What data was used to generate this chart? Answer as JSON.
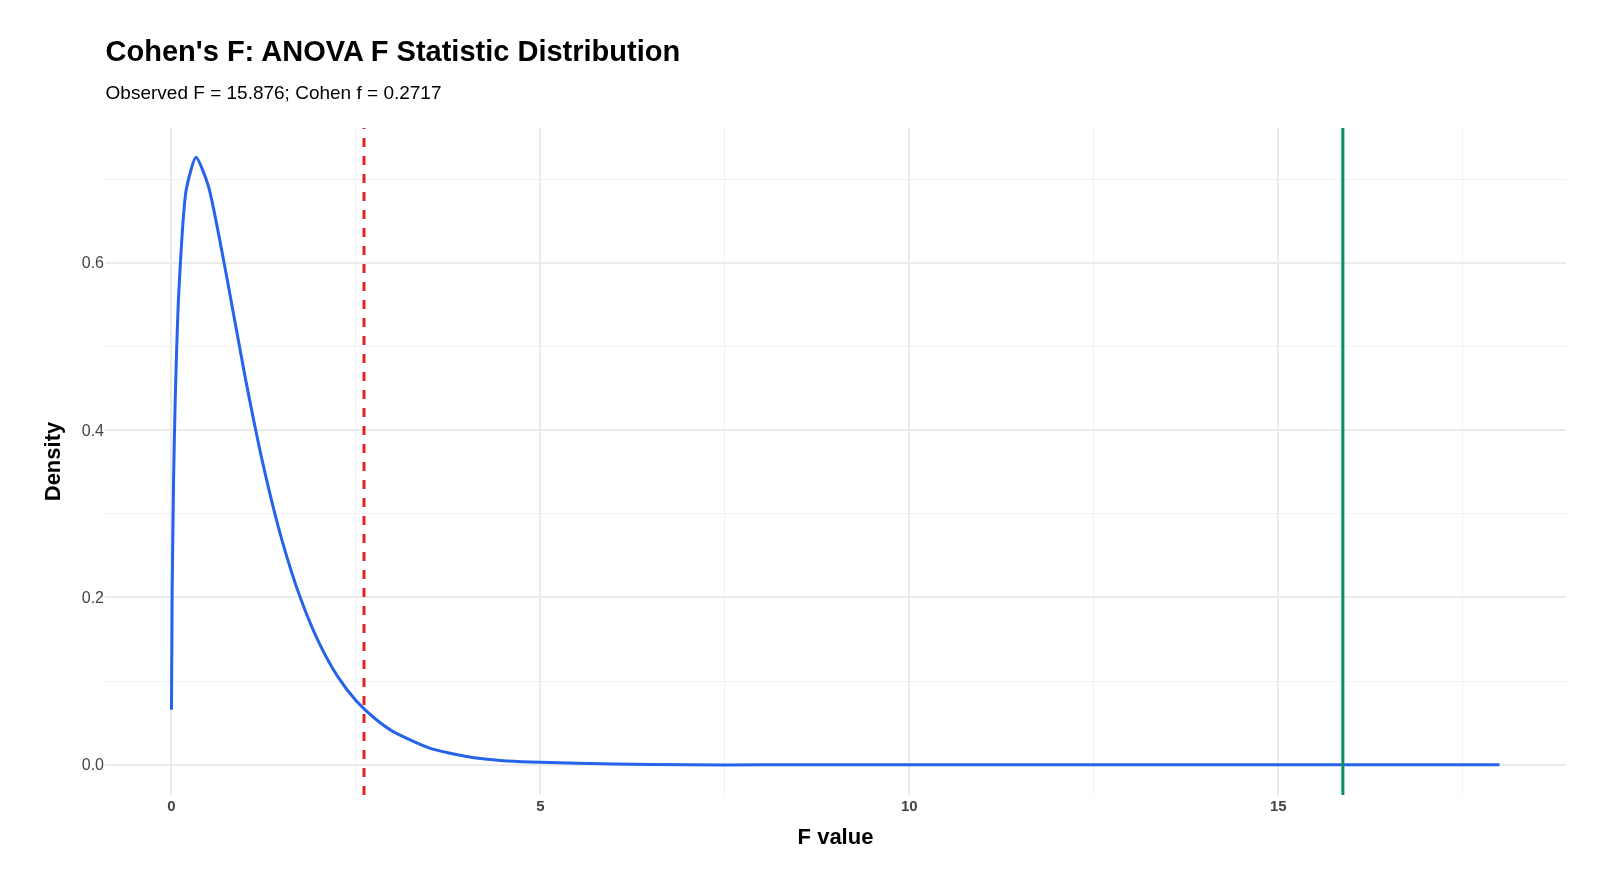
{
  "chart_data": {
    "type": "line",
    "title": "Cohen's F: ANOVA F Statistic Distribution",
    "subtitle": "Observed F = 15.876; Cohen f = 0.2717",
    "xlabel": "F value",
    "ylabel": "Density",
    "x": [
      0.001,
      0.01,
      0.03,
      0.05,
      0.1,
      0.2,
      0.333,
      0.5,
      0.75,
      1,
      1.25,
      1.5,
      1.75,
      2,
      2.25,
      2.5,
      2.75,
      3,
      3.5,
      4,
      4.5,
      5,
      6,
      7,
      8,
      10,
      12,
      14,
      16,
      18
    ],
    "series": [
      {
        "color": "#2563eb",
        "values": [
          0.066,
          0.204,
          0.343,
          0.43,
          0.564,
          0.687,
          0.726,
          0.692,
          0.583,
          0.463,
          0.356,
          0.268,
          0.199,
          0.146,
          0.106,
          0.077,
          0.056,
          0.04,
          0.02,
          0.01,
          0.005,
          0.003,
          0.001,
          0,
          0,
          0,
          0,
          0,
          0,
          0
        ]
      }
    ],
    "xlim": [
      -0.9,
      18.9
    ],
    "ylim": [
      -0.036,
      0.761
    ],
    "xticks": [
      0,
      5,
      10,
      15
    ],
    "yticks": [
      {
        "value": 0,
        "label": "0.0"
      },
      {
        "value": 0.2,
        "label": "0.2"
      },
      {
        "value": 0.4,
        "label": "0.4"
      },
      {
        "value": 0.6,
        "label": "0.6"
      }
    ],
    "ref_lines": [
      {
        "axis": "x",
        "value": 2.61,
        "color": "#e02424",
        "line_style": "dashed"
      },
      {
        "axis": "x",
        "value": 15.876,
        "color": "#0b8f5e",
        "line_style": "solid"
      }
    ],
    "grid": true,
    "marker": "none",
    "line_style": "solid"
  }
}
